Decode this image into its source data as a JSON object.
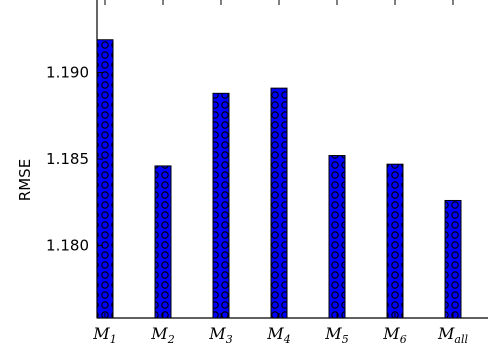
{
  "chart_data": {
    "type": "bar",
    "title": "",
    "xlabel": "",
    "ylabel": "RMSE",
    "categories": [
      {
        "base": "M",
        "sub": "1"
      },
      {
        "base": "M",
        "sub": "2"
      },
      {
        "base": "M",
        "sub": "3"
      },
      {
        "base": "M",
        "sub": "4"
      },
      {
        "base": "M",
        "sub": "5"
      },
      {
        "base": "M",
        "sub": "6"
      },
      {
        "base": "M",
        "sub": "all"
      }
    ],
    "values": [
      1.1919,
      1.1846,
      1.1888,
      1.1891,
      1.1852,
      1.1847,
      1.1826
    ],
    "ylim": [
      1.1758,
      1.1942
    ],
    "yticks": [
      1.18,
      1.185,
      1.19
    ],
    "ytick_labels": [
      "1.180",
      "1.185",
      "1.190"
    ],
    "grid": false,
    "legend": "none",
    "bar_color": "#0000ff",
    "bar_edge_color": "#000000",
    "bar_hatch": "circles"
  }
}
